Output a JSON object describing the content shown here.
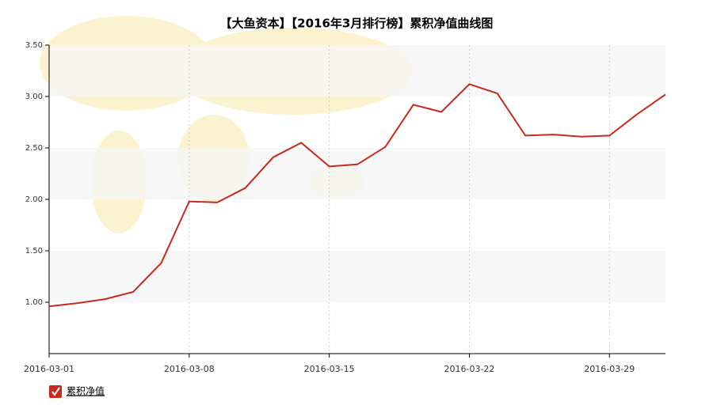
{
  "chart_data": {
    "type": "line",
    "title": "【大鱼资本】【2016年3月排行榜】累积净值曲线图",
    "categories": [
      "2016-03-01",
      null,
      null,
      null,
      null,
      "2016-03-08",
      null,
      null,
      null,
      null,
      "2016-03-15",
      null,
      null,
      null,
      null,
      "2016-03-22",
      null,
      null,
      null,
      null,
      "2016-03-29",
      null,
      null
    ],
    "series": [
      {
        "name": "累积净值",
        "color": "#c9291c",
        "values": [
          0.96,
          0.99,
          1.03,
          1.1,
          1.38,
          1.98,
          1.97,
          2.11,
          2.41,
          2.55,
          2.32,
          2.34,
          2.51,
          2.92,
          2.85,
          3.12,
          3.03,
          2.62,
          2.63,
          2.61,
          2.62,
          2.83,
          3.02
        ]
      }
    ],
    "ylim": [
      0.5,
      3.5
    ],
    "yticks": [
      {
        "value": 1,
        "label": "1.00"
      },
      {
        "value": 1.5,
        "label": "1.50"
      },
      {
        "value": 2,
        "label": "2.00"
      },
      {
        "value": 2.5,
        "label": "2.50"
      },
      {
        "value": 3,
        "label": "3.00"
      },
      {
        "value": 3.5,
        "label": "3.50"
      }
    ],
    "grid": true,
    "legend": "bottom-left"
  }
}
